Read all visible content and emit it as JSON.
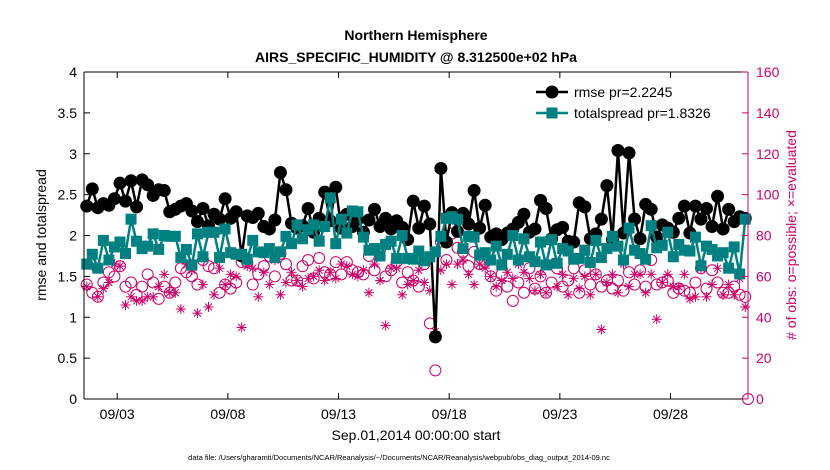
{
  "chart_data": {
    "type": "line",
    "title_line1": "Northern Hemisphere",
    "title_line2": "AIRS_SPECIFIC_HUMIDITY @ 8.312500e+02 hPa",
    "xlabel": "Sep.01,2014 00:00:00 start",
    "ylabel_left": "rmse and totalspread",
    "ylabel_right": "# of obs: o=possible; ×=evaluated",
    "footnote": "data file: /Users/gharamti/Documents/NCAR/Reanalysis/~/Documents/NCAR/Reanalysis/webpub/obs_diag_output_2014-09.nc",
    "xlim": [
      1.5,
      31.5
    ],
    "ylim_left": [
      0,
      4
    ],
    "ylim_right": [
      0,
      160
    ],
    "x_ticks": [
      3,
      8,
      13,
      18,
      23,
      28
    ],
    "x_tick_labels": [
      "09/03",
      "09/08",
      "09/13",
      "09/18",
      "09/23",
      "09/28"
    ],
    "y_ticks_left": [
      0,
      0.5,
      1,
      1.5,
      2,
      2.5,
      3,
      3.5,
      4
    ],
    "y_tick_labels_left": [
      "0",
      "0.5",
      "1",
      "1.5",
      "2",
      "2.5",
      "3",
      "3.5",
      "4"
    ],
    "y_ticks_right": [
      0,
      20,
      40,
      60,
      80,
      100,
      120,
      140,
      160
    ],
    "y_tick_labels_right": [
      "0",
      "20",
      "40",
      "60",
      "80",
      "100",
      "120",
      "140",
      "160"
    ],
    "legend": {
      "placement": "top-right",
      "entries": [
        "rmse pr=2.2245",
        "totalspread pr=1.8326"
      ]
    },
    "colors": {
      "rmse": "#000000",
      "totalspread": "#008080",
      "obs": "#cc0066",
      "axis": "#000000"
    },
    "x": [
      1.625,
      1.875,
      2.125,
      2.375,
      2.625,
      2.875,
      3.125,
      3.375,
      3.625,
      3.875,
      4.125,
      4.375,
      4.625,
      4.875,
      5.125,
      5.375,
      5.625,
      5.875,
      6.125,
      6.375,
      6.625,
      6.875,
      7.125,
      7.375,
      7.625,
      7.875,
      8.125,
      8.375,
      8.625,
      8.875,
      9.125,
      9.375,
      9.625,
      9.875,
      10.125,
      10.375,
      10.625,
      10.875,
      11.125,
      11.375,
      11.625,
      11.875,
      12.125,
      12.375,
      12.625,
      12.875,
      13.125,
      13.375,
      13.625,
      13.875,
      14.125,
      14.375,
      14.625,
      14.875,
      15.125,
      15.375,
      15.625,
      15.875,
      16.125,
      16.375,
      16.625,
      16.875,
      17.125,
      17.375,
      17.625,
      17.875,
      18.125,
      18.375,
      18.625,
      18.875,
      19.125,
      19.375,
      19.625,
      19.875,
      20.125,
      20.375,
      20.625,
      20.875,
      21.125,
      21.375,
      21.625,
      21.875,
      22.125,
      22.375,
      22.625,
      22.875,
      23.125,
      23.375,
      23.625,
      23.875,
      24.125,
      24.375,
      24.625,
      24.875,
      25.125,
      25.375,
      25.625,
      25.875,
      26.125,
      26.375,
      26.625,
      26.875,
      27.125,
      27.375,
      27.625,
      27.875,
      28.125,
      28.375,
      28.625,
      28.875,
      29.125,
      29.375,
      29.625,
      29.875,
      30.125,
      30.375,
      30.625,
      30.875,
      31.125,
      31.375
    ],
    "series": [
      {
        "name": "rmse",
        "values": [
          2.36,
          2.57,
          2.34,
          2.39,
          2.37,
          2.45,
          2.64,
          2.42,
          2.67,
          2.35,
          2.68,
          2.62,
          2.49,
          2.56,
          2.55,
          2.29,
          2.32,
          2.36,
          2.39,
          2.3,
          2.17,
          2.33,
          2.12,
          2.26,
          2.2,
          2.45,
          2.21,
          2.29,
          1.75,
          2.24,
          2.22,
          2.27,
          2.11,
          2.08,
          2.19,
          2.77,
          2.56,
          2.15,
          2.09,
          2.12,
          2.33,
          2.04,
          2.21,
          2.53,
          2.18,
          2.59,
          2.09,
          2.26,
          2.11,
          2.2,
          2.04,
          2.19,
          2.32,
          2.11,
          2.21,
          2.08,
          2.18,
          2.1,
          1.95,
          2.42,
          2.09,
          2.36,
          2.14,
          0.76,
          2.82,
          1.92,
          2.28,
          2.05,
          2.27,
          2.14,
          2.55,
          2.09,
          2.37,
          1.98,
          2.02,
          1.95,
          2.03,
          2.08,
          2.16,
          2.26,
          2.04,
          2.08,
          2.43,
          2.33,
          1.96,
          2.07,
          2.1,
          1.93,
          1.92,
          2.4,
          2.35,
          1.96,
          2.02,
          2.2,
          2.61,
          1.95,
          3.04,
          2.03,
          3.01,
          2.2,
          1.96,
          2.38,
          2.32,
          1.98,
          2.13,
          2.09,
          2.04,
          2.21,
          2.36,
          2.03,
          2.36,
          2.2,
          2.33,
          2.11,
          2.48,
          2.08,
          2.32,
          2.17,
          2.23,
          2.21
        ]
      },
      {
        "name": "totalspread",
        "values": [
          1.65,
          1.77,
          1.6,
          1.94,
          1.7,
          1.86,
          1.92,
          1.78,
          2.2,
          1.93,
          1.84,
          1.87,
          2.02,
          1.83,
          2.0,
          1.99,
          1.99,
          1.73,
          1.83,
          1.64,
          2.02,
          1.74,
          2.04,
          2.04,
          1.73,
          2.08,
          1.79,
          1.77,
          1.77,
          1.71,
          1.94,
          1.8,
          1.79,
          1.84,
          1.73,
          1.8,
          1.99,
          1.9,
          2.13,
          1.96,
          2.07,
          2.13,
          1.93,
          2.11,
          2.46,
          1.9,
          2.2,
          2.03,
          2.3,
          2.29,
          1.98,
          1.82,
          1.84,
          1.75,
          1.89,
          1.93,
          1.72,
          2.0,
          1.72,
          1.71,
          1.81,
          1.69,
          1.74,
          1.8,
          1.99,
          2.21,
          2.23,
          2.2,
          1.84,
          1.99,
          1.98,
          1.76,
          1.79,
          1.7,
          1.87,
          1.64,
          1.77,
          2.0,
          1.7,
          1.96,
          1.74,
          1.68,
          1.92,
          1.64,
          1.95,
          1.66,
          1.84,
          1.81,
          1.71,
          1.72,
          1.82,
          1.67,
          1.94,
          1.73,
          1.84,
          1.99,
          1.87,
          1.7,
          2.09,
          1.82,
          1.78,
          1.71,
          2.12,
          1.85,
          1.88,
          2.04,
          1.74,
          1.89,
          1.82,
          1.81,
          1.98,
          1.63,
          1.87,
          1.83,
          1.75,
          1.79,
          1.6,
          1.86,
          1.53,
          2.2
        ]
      },
      {
        "name": "obs_possible",
        "axis": "right",
        "values": [
          56,
          52,
          50,
          57,
          62,
          60,
          65,
          55,
          57,
          51,
          55,
          61,
          57,
          49,
          55,
          52,
          57,
          64,
          62,
          60,
          56,
          68,
          65,
          64,
          52,
          56,
          54,
          57,
          67,
          67,
          56,
          61,
          65,
          70,
          60,
          71,
          66,
          58,
          58,
          65,
          68,
          59,
          69,
          62,
          61,
          67,
          61,
          67,
          63,
          62,
          61,
          70,
          63,
          73,
          60,
          63,
          67,
          57,
          62,
          58,
          55,
          66,
          37,
          14,
          77,
          68,
          81,
          74,
          72,
          65,
          72,
          66,
          67,
          60,
          53,
          61,
          55,
          48,
          57,
          52,
          64,
          54,
          60,
          52,
          57,
          64,
          55,
          58,
          64,
          52,
          63,
          56,
          61,
          55,
          58,
          54,
          58,
          53,
          62,
          56,
          63,
          55,
          68,
          56,
          57,
          58,
          52,
          54,
          53,
          52,
          57,
          64,
          54,
          63,
          57,
          52,
          52,
          55,
          51,
          50
        ]
      },
      {
        "name": "obs_evaluated",
        "axis": "right",
        "values": [
          55,
          65,
          50,
          54,
          57,
          66,
          65,
          46,
          50,
          48,
          48,
          50,
          50,
          55,
          61,
          52,
          52,
          44,
          66,
          63,
          42,
          56,
          45,
          51,
          64,
          56,
          61,
          60,
          35,
          65,
          64,
          50,
          62,
          56,
          68,
          51,
          57,
          62,
          58,
          55,
          59,
          60,
          63,
          58,
          62,
          59,
          66,
          65,
          61,
          60,
          63,
          52,
          66,
          58,
          36,
          64,
          64,
          51,
          56,
          58,
          63,
          57,
          53,
          33,
          63,
          66,
          56,
          66,
          68,
          61,
          56,
          66,
          64,
          60,
          55,
          58,
          62,
          59,
          66,
          62,
          59,
          53,
          61,
          52,
          66,
          55,
          61,
          51,
          59,
          54,
          60,
          51,
          61,
          34,
          57,
          61,
          52,
          66,
          55,
          61,
          61,
          52,
          61,
          39,
          57,
          61,
          55,
          55,
          61,
          49,
          50,
          64,
          50,
          56,
          64,
          51,
          56,
          51,
          59,
          45
        ]
      }
    ]
  }
}
